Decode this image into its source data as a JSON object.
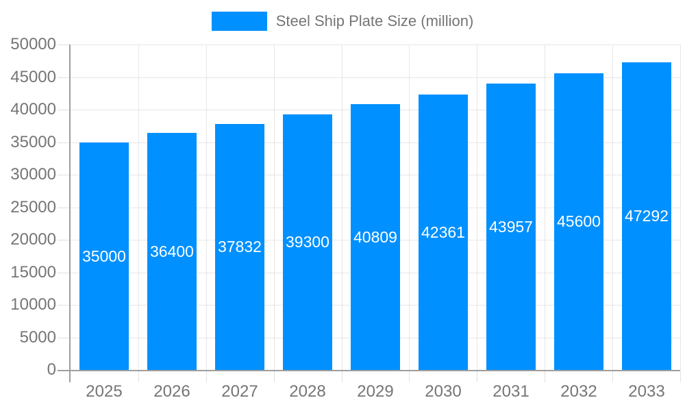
{
  "chart_data": {
    "type": "bar",
    "title": "Steel Ship Plate Size (million)",
    "legend": {
      "label": "Steel Ship Plate Size (million)",
      "position": "top-center"
    },
    "categories": [
      "2025",
      "2026",
      "2027",
      "2028",
      "2029",
      "2030",
      "2031",
      "2032",
      "2033"
    ],
    "series": [
      {
        "name": "Steel Ship Plate Size (million)",
        "values": [
          35000,
          36400,
          37832,
          39300,
          40809,
          42361,
          43957,
          45600,
          47292
        ]
      }
    ],
    "value_labels": [
      "35000",
      "36400",
      "37832",
      "39300",
      "40809",
      "42361",
      "43957",
      "45600",
      "47292"
    ],
    "xlabel": "",
    "ylabel": "",
    "ylim": [
      0,
      50000
    ],
    "ytick_step": 5000,
    "ytick_labels": [
      "0",
      "5000",
      "10000",
      "15000",
      "20000",
      "25000",
      "30000",
      "35000",
      "40000",
      "45000",
      "50000"
    ],
    "grid": true,
    "colors": {
      "bar": "#0090FF",
      "value_label_text": "#FFFFFF",
      "axis_text": "#757575",
      "gridline": "#E6E6E6",
      "tick": "#E0E0E0",
      "axis_line": "#9E9E9E",
      "background": "#FFFFFF"
    }
  }
}
